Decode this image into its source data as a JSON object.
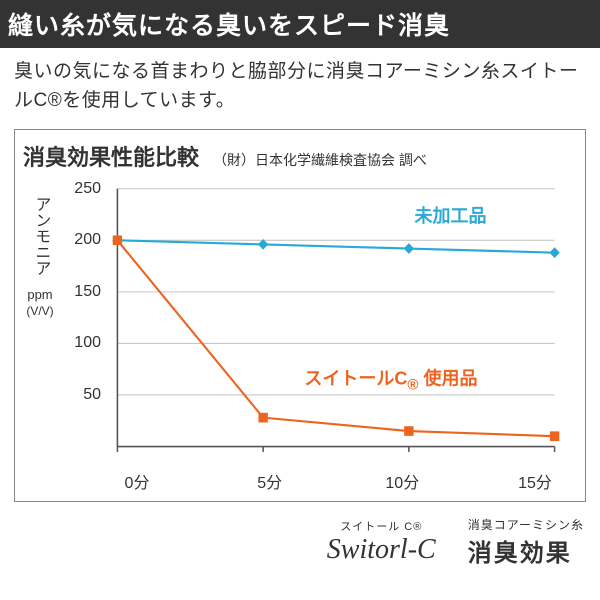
{
  "header": {
    "title": "縫い糸が気になる臭いをスピード消臭",
    "subtitle": "臭いの気になる首まわりと脇部分に消臭コアーミシン糸スイトールC®を使用しています。"
  },
  "chart": {
    "title": "消臭効果性能比較",
    "source": "（財）日本化学繊維検査協会 調べ",
    "type": "line",
    "yaxis": {
      "label_vertical": "アンモニア",
      "unit1": "ppm",
      "unit2": "(V/V)",
      "min": 0,
      "max": 250,
      "ticks": [
        50,
        100,
        150,
        200,
        250
      ],
      "fontsize": 16
    },
    "xaxis": {
      "categories": [
        "0分",
        "5分",
        "10分",
        "15分"
      ],
      "fontsize": 16
    },
    "grid_color": "#c8c8c8",
    "axis_color": "#555555",
    "background_color": "#ffffff",
    "series": [
      {
        "name": "未加工品",
        "label": "未加工品",
        "color": "#2aa8d6",
        "marker": "diamond",
        "marker_size": 10,
        "line_width": 2,
        "values": [
          200,
          196,
          192,
          188
        ],
        "label_pos": {
          "x_pct": 75,
          "y_val": 225
        }
      },
      {
        "name": "スイトールC使用品",
        "label_html": "スイトールC<sub>®</sub> 使用品",
        "color": "#ec641f",
        "marker": "square",
        "marker_size": 9,
        "line_width": 2,
        "values": [
          200,
          28,
          15,
          10
        ],
        "label_pos": {
          "x_pct": 62,
          "y_val": 65
        }
      }
    ]
  },
  "footer": {
    "brand_ruby": "スイトール C®",
    "brand_script": "Switorl-C",
    "effect_small": "消臭コアーミシン糸",
    "effect_big": "消臭効果"
  }
}
